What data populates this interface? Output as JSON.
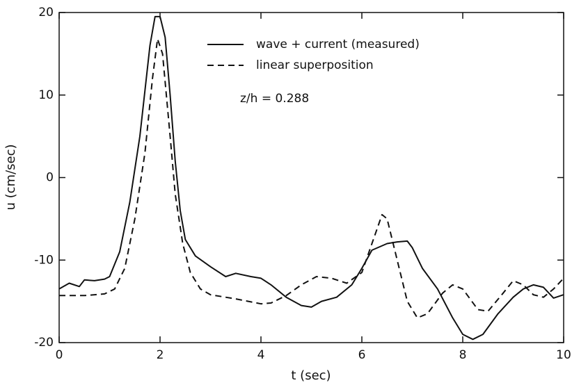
{
  "chart_data": {
    "type": "line",
    "xlabel": "t (sec)",
    "ylabel": "u (cm/sec)",
    "annotation": "z/h = 0.288",
    "xlim": [
      0,
      10
    ],
    "ylim": [
      -20,
      20
    ],
    "xticks": [
      0,
      2,
      4,
      6,
      8,
      10
    ],
    "yticks": [
      -20,
      -10,
      0,
      10,
      20
    ],
    "series": [
      {
        "name": "wave + current (measured)",
        "color": "#111111",
        "dash": "solid",
        "x": [
          0,
          0.2,
          0.4,
          0.5,
          0.7,
          0.9,
          1.0,
          1.2,
          1.4,
          1.6,
          1.8,
          1.9,
          2.0,
          2.1,
          2.2,
          2.3,
          2.4,
          2.5,
          2.7,
          3.0,
          3.3,
          3.5,
          3.8,
          4.0,
          4.2,
          4.5,
          4.8,
          5.0,
          5.2,
          5.5,
          5.8,
          6.0,
          6.2,
          6.5,
          6.7,
          6.9,
          7.0,
          7.2,
          7.5,
          7.8,
          8.0,
          8.2,
          8.4,
          8.7,
          9.0,
          9.2,
          9.4,
          9.6,
          9.8,
          10.0
        ],
        "values": [
          -13.5,
          -12.8,
          -13.2,
          -12.4,
          -12.5,
          -12.3,
          -12,
          -9,
          -3,
          5,
          16,
          19.5,
          19.5,
          17,
          10,
          2,
          -4,
          -7.5,
          -9.5,
          -10.8,
          -12,
          -11.6,
          -12,
          -12.2,
          -13,
          -14.5,
          -15.5,
          -15.7,
          -15,
          -14.5,
          -13,
          -11,
          -8.8,
          -8,
          -7.8,
          -7.7,
          -8.5,
          -11,
          -13.5,
          -17,
          -19,
          -19.6,
          -19,
          -16.5,
          -14.5,
          -13.5,
          -13,
          -13.3,
          -14.6,
          -14.2
        ]
      },
      {
        "name": "linear superposition",
        "color": "#111111",
        "dash": "dashed",
        "x": [
          0,
          0.5,
          0.9,
          1.1,
          1.3,
          1.5,
          1.7,
          1.85,
          1.95,
          2.05,
          2.2,
          2.3,
          2.45,
          2.6,
          2.8,
          3.0,
          3.5,
          4.0,
          4.2,
          4.5,
          4.8,
          5.1,
          5.4,
          5.7,
          6.0,
          6.2,
          6.4,
          6.5,
          6.7,
          6.9,
          7.1,
          7.3,
          7.6,
          7.8,
          8.0,
          8.3,
          8.5,
          8.8,
          9.0,
          9.2,
          9.4,
          9.6,
          9.8,
          10.0
        ],
        "values": [
          -14.3,
          -14.3,
          -14.1,
          -13.5,
          -11,
          -5,
          3,
          12,
          16.8,
          15,
          5,
          -2,
          -8,
          -11.5,
          -13.5,
          -14.2,
          -14.7,
          -15.3,
          -15.2,
          -14.3,
          -13,
          -12,
          -12.2,
          -12.8,
          -11.5,
          -8,
          -4.5,
          -5,
          -10,
          -15,
          -17,
          -16.5,
          -14,
          -13,
          -13.5,
          -16,
          -16.2,
          -14,
          -12.5,
          -13,
          -14.2,
          -14.5,
          -13.5,
          -12.2
        ]
      }
    ]
  }
}
